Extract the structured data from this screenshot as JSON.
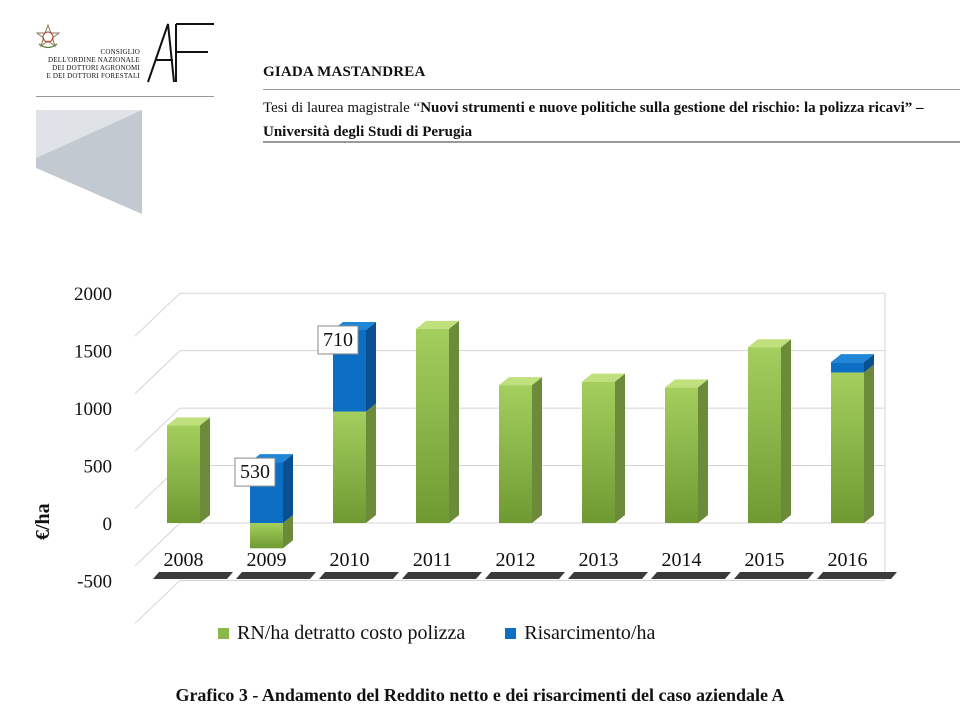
{
  "header": {
    "council_text": "CONSIGLIO\nDELL'ORDINE NAZIONALE\nDEI DOTTORI AGRONOMI\nE DEI DOTTORI FORESTALI",
    "author": "GIADA MASTANDREA",
    "thesis_prefix": "Tesi di laurea magistrale “",
    "thesis_title": "Nuovi strumenti e nuove politiche sulla gestione del rischio: la polizza ricavi",
    "thesis_suffix": "” – Università degli Studi di Perugia"
  },
  "caption": "Grafico 3 - Andamento del Reddito netto e dei risarcimenti del caso aziendale A",
  "colors": {
    "green_front_top": "#a4cf5e",
    "green_front_bottom": "#6f9a32",
    "green_side": "#6b8a3a",
    "green_top": "#bfe07d",
    "blue_front": "#0d6fc4",
    "blue_side": "#0a4f91",
    "blue_top": "#1f86d8",
    "gridline": "#d4d4d4"
  },
  "chart_data": {
    "type": "bar",
    "stacked": true,
    "three_d": true,
    "categories": [
      "2008",
      "2009",
      "2010",
      "2011",
      "2012",
      "2013",
      "2014",
      "2015",
      "2016"
    ],
    "series": [
      {
        "name": "RN/ha detratto costo polizza",
        "color": "#8ab84a",
        "values": [
          850,
          -220,
          970,
          1690,
          1200,
          1230,
          1180,
          1530,
          1310
        ]
      },
      {
        "name": "Risarcimento/ha",
        "color": "#0d6fc4",
        "values": [
          0,
          530,
          710,
          0,
          0,
          0,
          0,
          0,
          90
        ]
      }
    ],
    "data_labels": [
      {
        "category": "2009",
        "series": "Risarcimento/ha",
        "text": "530"
      },
      {
        "category": "2010",
        "series": "Risarcimento/ha",
        "text": "710"
      }
    ],
    "ylabel": "€/ha",
    "y_ticks": [
      "2000",
      "1500",
      "1000",
      "500",
      "0",
      "-500"
    ],
    "ylim": [
      -500,
      2000
    ],
    "grid": true,
    "legend_position": "bottom"
  }
}
